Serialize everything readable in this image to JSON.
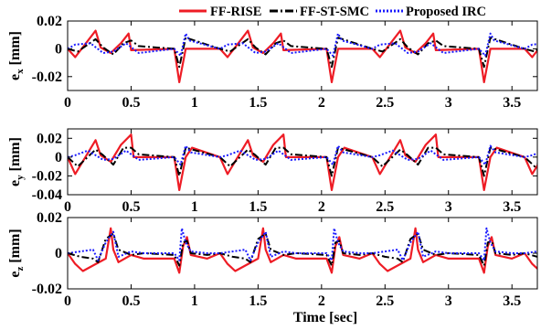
{
  "chart_data": {
    "type": "line",
    "legend": {
      "placement": "top",
      "entries": [
        {
          "name": "FF-RISE",
          "color": "#ee1c25",
          "dash": "solid"
        },
        {
          "name": "FF-ST-SMC",
          "color": "#000000",
          "dash": "dashdot"
        },
        {
          "name": "Proposed IRC",
          "color": "#1a1aff",
          "dash": "dotted"
        }
      ]
    },
    "xlabel": "Time [sec]",
    "xlim": [
      0,
      3.7
    ],
    "xticks": [
      0,
      0.5,
      1,
      1.5,
      2,
      2.5,
      3,
      3.5
    ],
    "xtick_labels": [
      "0",
      "0.5",
      "1",
      "1.5",
      "2",
      "2.5",
      "3",
      "3.5"
    ],
    "period": 1.2,
    "subplots": [
      {
        "ylabel_main": "e",
        "ylabel_sub": "x",
        "ylabel_unit": " [mm]",
        "ylim": [
          -0.03,
          0.02
        ],
        "yticks": [
          0.02,
          0,
          -0.02
        ],
        "ytick_labels": [
          "0.02",
          "0",
          "-0.02"
        ],
        "series": [
          {
            "name": "FF-RISE",
            "x": [
              0,
              0.06,
              0.22,
              0.26,
              0.34,
              0.42,
              0.48,
              0.5,
              0.84,
              0.88,
              0.93
            ],
            "y": [
              0,
              -0.006,
              0.013,
              0.001,
              -0.003,
              0.004,
              0.011,
              -0.001,
              0,
              -0.024,
              0
            ]
          },
          {
            "name": "FF-ST-SMC",
            "x": [
              0,
              0.08,
              0.22,
              0.28,
              0.36,
              0.44,
              0.5,
              0.56,
              0.84,
              0.88,
              0.93
            ],
            "y": [
              0,
              -0.002,
              0.007,
              0.001,
              -0.004,
              0.004,
              0.006,
              0.002,
              0,
              -0.013,
              0.008
            ]
          },
          {
            "name": "Proposed IRC",
            "x": [
              0,
              0.06,
              0.18,
              0.28,
              0.36,
              0.46,
              0.56,
              0.84,
              0.89,
              0.93,
              0.96
            ],
            "y": [
              0,
              0.003,
              0.004,
              -0.003,
              -0.002,
              0.004,
              -0.003,
              0,
              -0.005,
              0.011,
              0.006
            ]
          }
        ]
      },
      {
        "ylabel_main": "e",
        "ylabel_sub": "y",
        "ylabel_unit": " [mm]",
        "ylim": [
          -0.04,
          0.03
        ],
        "yticks": [
          0.02,
          0,
          -0.02,
          -0.04
        ],
        "ytick_labels": [
          "0.02",
          "0",
          "-0.02",
          "-0.04"
        ],
        "series": [
          {
            "name": "FF-RISE",
            "x": [
              0,
              0.06,
              0.22,
              0.26,
              0.34,
              0.42,
              0.5,
              0.52,
              0.84,
              0.88,
              0.93,
              0.98
            ],
            "y": [
              0,
              -0.018,
              0.018,
              0.002,
              -0.005,
              0.013,
              0.024,
              0,
              0,
              -0.035,
              0,
              0.01
            ]
          },
          {
            "name": "FF-ST-SMC",
            "x": [
              0,
              0.08,
              0.22,
              0.28,
              0.36,
              0.44,
              0.5,
              0.56,
              0.84,
              0.88,
              0.93
            ],
            "y": [
              0,
              -0.01,
              0.008,
              0.002,
              -0.008,
              0.01,
              0.01,
              0.003,
              0,
              -0.02,
              0.01
            ]
          },
          {
            "name": "Proposed IRC",
            "x": [
              0,
              0.06,
              0.16,
              0.28,
              0.36,
              0.46,
              0.56,
              0.84,
              0.89,
              0.93,
              0.97
            ],
            "y": [
              0,
              0.002,
              0.007,
              -0.003,
              -0.002,
              0.007,
              -0.003,
              0,
              -0.008,
              0.012,
              0.005
            ]
          }
        ]
      },
      {
        "ylabel_main": "e",
        "ylabel_sub": "z",
        "ylabel_unit": " [mm]",
        "ylim": [
          -0.02,
          0.02
        ],
        "yticks": [
          0.02,
          0,
          -0.02
        ],
        "ytick_labels": [
          "0.02",
          "0",
          "-0.02"
        ],
        "series": [
          {
            "name": "FF-RISE",
            "x": [
              0,
              0.06,
              0.12,
              0.3,
              0.34,
              0.36,
              0.4,
              0.5,
              0.6,
              0.84,
              0.88,
              0.91,
              0.94,
              0.97,
              1.1
            ],
            "y": [
              0,
              -0.006,
              -0.01,
              -0.003,
              0.014,
              0.002,
              -0.005,
              -0.001,
              -0.003,
              -0.003,
              -0.011,
              0.004,
              0.009,
              -0.001,
              -0.003
            ]
          },
          {
            "name": "FF-ST-SMC",
            "x": [
              0,
              0.1,
              0.2,
              0.24,
              0.3,
              0.36,
              0.4,
              0.5,
              0.6,
              0.84,
              0.88,
              0.91,
              0.94,
              0.97,
              1.1
            ],
            "y": [
              0,
              -0.002,
              -0.003,
              -0.005,
              0.008,
              0.011,
              0.002,
              -0.001,
              0,
              -0.001,
              -0.007,
              0.006,
              0.007,
              0,
              -0.001
            ]
          },
          {
            "name": "Proposed IRC",
            "x": [
              0,
              0.1,
              0.2,
              0.24,
              0.3,
              0.36,
              0.4,
              0.5,
              0.6,
              0.84,
              0.88,
              0.9,
              0.93,
              0.97,
              1.1
            ],
            "y": [
              0,
              0.001,
              0.002,
              -0.004,
              0.006,
              0.012,
              -0.002,
              0.001,
              0,
              0,
              -0.004,
              0.014,
              0.006,
              0.001,
              0
            ]
          }
        ]
      }
    ]
  }
}
